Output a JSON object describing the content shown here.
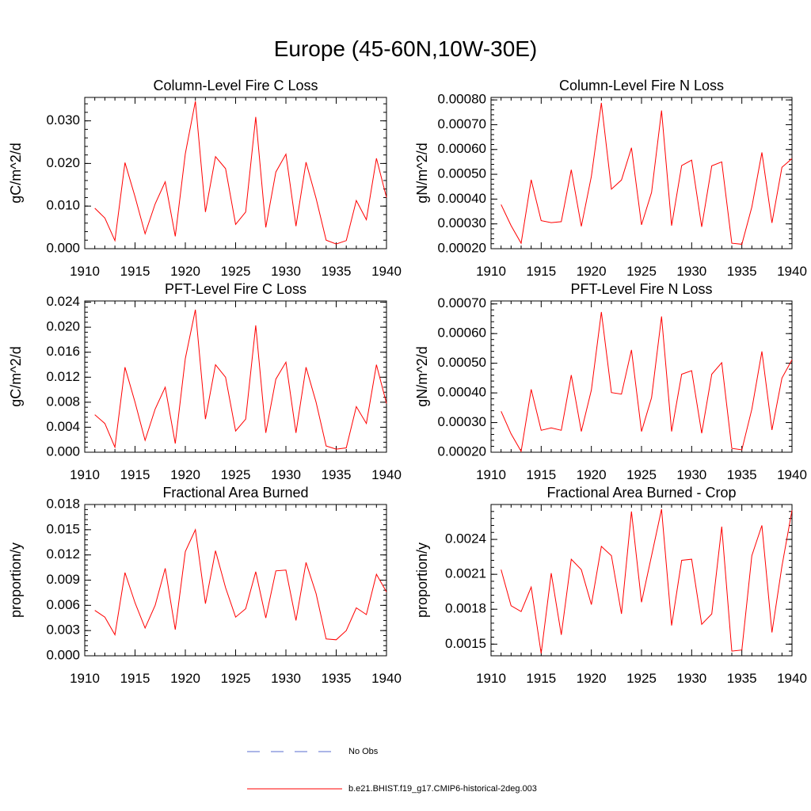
{
  "title": "Europe (45-60N,10W-30E)",
  "colors": {
    "model": "#ff0000",
    "obs": "#5a6ccf",
    "axis": "#000000"
  },
  "legend": [
    {
      "label": "No Obs",
      "style": "dashed",
      "color": "#5a6ccf"
    },
    {
      "label": "b.e21.BHIST.f19_g17.CMIP6-historical-2deg.003",
      "style": "solid",
      "color": "#ff0000"
    }
  ],
  "chart_data": [
    {
      "type": "line",
      "title": "Column-Level Fire C Loss",
      "ylabel": "gC/m^2/d",
      "xlim": [
        1910,
        1940
      ],
      "ylim": [
        0,
        0.0355
      ],
      "xticks": [
        "1910",
        "1915",
        "1920",
        "1925",
        "1930",
        "1935",
        "1940"
      ],
      "yticks": [
        {
          "v": 0,
          "label": "0.000"
        },
        {
          "v": 0.01,
          "label": "0.010"
        },
        {
          "v": 0.02,
          "label": "0.020"
        },
        {
          "v": 0.03,
          "label": "0.030"
        }
      ],
      "series": [
        {
          "name": "b.e21.BHIST.f19_g17.CMIP6-historical-2deg.003",
          "x": [
            1911,
            1912,
            1913,
            1914,
            1915,
            1916,
            1917,
            1918,
            1919,
            1920,
            1921,
            1922,
            1923,
            1924,
            1925,
            1926,
            1927,
            1928,
            1929,
            1930,
            1931,
            1932,
            1933,
            1934,
            1935,
            1936,
            1937,
            1938,
            1939,
            1940
          ],
          "y": [
            0.0095,
            0.0072,
            0.0019,
            0.0202,
            0.0122,
            0.0035,
            0.0105,
            0.0157,
            0.0029,
            0.0223,
            0.0346,
            0.0086,
            0.0216,
            0.0188,
            0.0057,
            0.0086,
            0.0309,
            0.005,
            0.018,
            0.0222,
            0.0053,
            0.0203,
            0.0118,
            0.002,
            0.0011,
            0.0019,
            0.0113,
            0.0068,
            0.0212,
            0.012
          ]
        }
      ]
    },
    {
      "type": "line",
      "title": "Column-Level Fire N Loss",
      "ylabel": "gN/m^2/d",
      "xlim": [
        1910,
        1940
      ],
      "ylim": [
        0.0002,
        0.00081
      ],
      "xticks": [
        "1910",
        "1915",
        "1920",
        "1925",
        "1930",
        "1935",
        "1940"
      ],
      "yticks": [
        {
          "v": 0.0002,
          "label": "0.00020"
        },
        {
          "v": 0.0003,
          "label": "0.00030"
        },
        {
          "v": 0.0004,
          "label": "0.00040"
        },
        {
          "v": 0.0005,
          "label": "0.00050"
        },
        {
          "v": 0.0006,
          "label": "0.00060"
        },
        {
          "v": 0.0007,
          "label": "0.00070"
        },
        {
          "v": 0.0008,
          "label": "0.00080"
        }
      ],
      "series": [
        {
          "name": "b.e21.BHIST.f19_g17.CMIP6-historical-2deg.003",
          "x": [
            1911,
            1912,
            1913,
            1914,
            1915,
            1916,
            1917,
            1918,
            1919,
            1920,
            1921,
            1922,
            1923,
            1924,
            1925,
            1926,
            1927,
            1928,
            1929,
            1930,
            1931,
            1932,
            1933,
            1934,
            1935,
            1936,
            1937,
            1938,
            1939,
            1940
          ],
          "y": [
            0.000378,
            0.000293,
            0.000222,
            0.000478,
            0.000313,
            0.000305,
            0.000309,
            0.000518,
            0.00029,
            0.000492,
            0.000788,
            0.00044,
            0.000477,
            0.000607,
            0.000296,
            0.000427,
            0.000757,
            0.000293,
            0.000535,
            0.000557,
            0.000288,
            0.000534,
            0.00055,
            0.000222,
            0.000218,
            0.000368,
            0.000588,
            0.000304,
            0.000528,
            0.000563
          ]
        }
      ]
    },
    {
      "type": "line",
      "title": "PFT-Level Fire C Loss",
      "ylabel": "gC/m^2/d",
      "xlim": [
        1910,
        1940
      ],
      "ylim": [
        0,
        0.0242
      ],
      "xticks": [
        "1910",
        "1915",
        "1920",
        "1925",
        "1930",
        "1935",
        "1940"
      ],
      "yticks": [
        {
          "v": 0,
          "label": "0.000"
        },
        {
          "v": 0.004,
          "label": "0.004"
        },
        {
          "v": 0.008,
          "label": "0.008"
        },
        {
          "v": 0.012,
          "label": "0.012"
        },
        {
          "v": 0.016,
          "label": "0.016"
        },
        {
          "v": 0.02,
          "label": "0.020"
        },
        {
          "v": 0.024,
          "label": "0.024"
        }
      ],
      "series": [
        {
          "name": "b.e21.BHIST.f19_g17.CMIP6-historical-2deg.003",
          "x": [
            1911,
            1912,
            1913,
            1914,
            1915,
            1916,
            1917,
            1918,
            1919,
            1920,
            1921,
            1922,
            1923,
            1924,
            1925,
            1926,
            1927,
            1928,
            1929,
            1930,
            1931,
            1932,
            1933,
            1934,
            1935,
            1936,
            1937,
            1938,
            1939,
            1940
          ],
          "y": [
            0.006,
            0.0046,
            0.0008,
            0.0136,
            0.008,
            0.0019,
            0.0069,
            0.0104,
            0.0014,
            0.015,
            0.0228,
            0.0053,
            0.014,
            0.012,
            0.0034,
            0.0053,
            0.0203,
            0.0031,
            0.0117,
            0.0144,
            0.0031,
            0.0136,
            0.008,
            0.001,
            0.0005,
            0.0007,
            0.0073,
            0.0046,
            0.014,
            0.0078
          ]
        }
      ]
    },
    {
      "type": "line",
      "title": "PFT-Level Fire N Loss",
      "ylabel": "gN/m^2/d",
      "xlim": [
        1910,
        1940
      ],
      "ylim": [
        0.0002,
        0.00071
      ],
      "xticks": [
        "1910",
        "1915",
        "1920",
        "1925",
        "1930",
        "1935",
        "1940"
      ],
      "yticks": [
        {
          "v": 0.0002,
          "label": "0.00020"
        },
        {
          "v": 0.0003,
          "label": "0.00030"
        },
        {
          "v": 0.0004,
          "label": "0.00040"
        },
        {
          "v": 0.0005,
          "label": "0.00050"
        },
        {
          "v": 0.0006,
          "label": "0.00060"
        },
        {
          "v": 0.0007,
          "label": "0.00070"
        }
      ],
      "series": [
        {
          "name": "b.e21.BHIST.f19_g17.CMIP6-historical-2deg.003",
          "x": [
            1911,
            1912,
            1913,
            1914,
            1915,
            1916,
            1917,
            1918,
            1919,
            1920,
            1921,
            1922,
            1923,
            1924,
            1925,
            1926,
            1927,
            1928,
            1929,
            1930,
            1931,
            1932,
            1933,
            1934,
            1935,
            1936,
            1937,
            1938,
            1939,
            1940
          ],
          "y": [
            0.000338,
            0.000262,
            0.000203,
            0.000412,
            0.000274,
            0.000282,
            0.000274,
            0.00046,
            0.00027,
            0.00041,
            0.000673,
            0.000401,
            0.000396,
            0.000545,
            0.00027,
            0.000384,
            0.000658,
            0.00027,
            0.000463,
            0.000475,
            0.000264,
            0.000463,
            0.000502,
            0.000213,
            0.000208,
            0.000345,
            0.00054,
            0.000275,
            0.00045,
            0.000512
          ]
        }
      ]
    },
    {
      "type": "line",
      "title": "Fractional Area Burned",
      "ylabel": "proportion/y",
      "xlim": [
        1910,
        1940
      ],
      "ylim": [
        0,
        0.018
      ],
      "xticks": [
        "1910",
        "1915",
        "1920",
        "1925",
        "1930",
        "1935",
        "1940"
      ],
      "yticks": [
        {
          "v": 0,
          "label": "0.000"
        },
        {
          "v": 0.003,
          "label": "0.003"
        },
        {
          "v": 0.006,
          "label": "0.006"
        },
        {
          "v": 0.009,
          "label": "0.009"
        },
        {
          "v": 0.012,
          "label": "0.012"
        },
        {
          "v": 0.015,
          "label": "0.015"
        },
        {
          "v": 0.018,
          "label": "0.018"
        }
      ],
      "series": [
        {
          "name": "b.e21.BHIST.f19_g17.CMIP6-historical-2deg.003",
          "x": [
            1911,
            1912,
            1913,
            1914,
            1915,
            1916,
            1917,
            1918,
            1919,
            1920,
            1921,
            1922,
            1923,
            1924,
            1925,
            1926,
            1927,
            1928,
            1929,
            1930,
            1931,
            1932,
            1933,
            1934,
            1935,
            1936,
            1937,
            1938,
            1939,
            1940
          ],
          "y": [
            0.0054,
            0.0046,
            0.0025,
            0.0099,
            0.0063,
            0.0033,
            0.006,
            0.0104,
            0.0031,
            0.0124,
            0.015,
            0.0062,
            0.0125,
            0.0081,
            0.0046,
            0.0056,
            0.01,
            0.0045,
            0.0101,
            0.0102,
            0.0042,
            0.0111,
            0.0074,
            0.002,
            0.0019,
            0.003,
            0.0057,
            0.0049,
            0.0097,
            0.0076
          ]
        }
      ]
    },
    {
      "type": "line",
      "title": "Fractional Area Burned - Crop",
      "ylabel": "proportion/y",
      "xlim": [
        1910,
        1940
      ],
      "ylim": [
        0.0014,
        0.0027
      ],
      "xticks": [
        "1910",
        "1915",
        "1920",
        "1925",
        "1930",
        "1935",
        "1940"
      ],
      "yticks": [
        {
          "v": 0.0015,
          "label": "0.0015"
        },
        {
          "v": 0.0018,
          "label": "0.0018"
        },
        {
          "v": 0.0021,
          "label": "0.0021"
        },
        {
          "v": 0.0024,
          "label": "0.0024"
        }
      ],
      "series": [
        {
          "name": "b.e21.BHIST.f19_g17.CMIP6-historical-2deg.003",
          "x": [
            1911,
            1912,
            1913,
            1914,
            1915,
            1916,
            1917,
            1918,
            1919,
            1920,
            1921,
            1922,
            1923,
            1924,
            1925,
            1926,
            1927,
            1928,
            1929,
            1930,
            1931,
            1932,
            1933,
            1934,
            1935,
            1936,
            1937,
            1938,
            1939,
            1940
          ],
          "y": [
            0.00214,
            0.00183,
            0.00178,
            0.00199,
            0.00142,
            0.00211,
            0.00158,
            0.00223,
            0.00214,
            0.00184,
            0.00234,
            0.00226,
            0.00176,
            0.00264,
            0.00186,
            0.00226,
            0.00266,
            0.00166,
            0.00222,
            0.00223,
            0.00167,
            0.00176,
            0.00251,
            0.00144,
            0.00145,
            0.00226,
            0.00252,
            0.0016,
            0.00217,
            0.00265
          ]
        }
      ]
    }
  ]
}
